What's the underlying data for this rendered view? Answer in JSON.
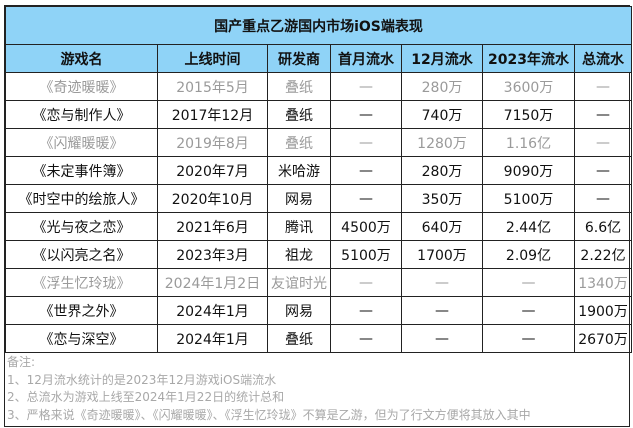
{
  "title": "国产重点乙游国内市场iOS端表现",
  "headers": [
    "游戏名",
    "上线时间",
    "研发商",
    "首月流水",
    "12月流水",
    "2023年流水",
    "总流水"
  ],
  "rows": [
    {
      "muted": true,
      "cells": [
        "《奇迹暖暖》",
        "2015年5月",
        "叠纸",
        "—",
        "280万",
        "3600万",
        "—"
      ]
    },
    {
      "muted": false,
      "cells": [
        "《恋与制作人》",
        "2017年12月",
        "叠纸",
        "—",
        "740万",
        "7150万",
        "—"
      ]
    },
    {
      "muted": true,
      "cells": [
        "《闪耀暖暖》",
        "2019年8月",
        "叠纸",
        "—",
        "1280万",
        "1.16亿",
        "—"
      ]
    },
    {
      "muted": false,
      "cells": [
        "《未定事件簿》",
        "2020年7月",
        "米哈游",
        "—",
        "280万",
        "9090万",
        "—"
      ]
    },
    {
      "muted": false,
      "cells": [
        "《时空中的绘旅人》",
        "2020年10月",
        "网易",
        "—",
        "350万",
        "5100万",
        "—"
      ]
    },
    {
      "muted": false,
      "cells": [
        "《光与夜之恋》",
        "2021年6月",
        "腾讯",
        "4500万",
        "640万",
        "2.44亿",
        "6.6亿"
      ]
    },
    {
      "muted": false,
      "cells": [
        "《以闪亮之名》",
        "2023年3月",
        "祖龙",
        "5100万",
        "1700万",
        "2.09亿",
        "2.22亿"
      ]
    },
    {
      "muted": true,
      "cells": [
        "《浮生忆玲珑》",
        "2024年1月2日",
        "友谊时光",
        "—",
        "—",
        "—",
        "1340万"
      ]
    },
    {
      "muted": false,
      "cells": [
        "《世界之外》",
        "2024年1月",
        "网易",
        "—",
        "—",
        "—",
        "1900万"
      ]
    },
    {
      "muted": false,
      "cells": [
        "《恋与深空》",
        "2024年1月",
        "叠纸",
        "—",
        "—",
        "—",
        "2670万"
      ]
    }
  ],
  "notes": [
    "备注:",
    "1、12月流水统计的是2023年12月游戏iOS端流水",
    "2、总流水为游戏上线至2024年1月22日的统计总和",
    "3、严格来说《奇迹暖暖》、《闪耀暖暖》、《浮生忆玲珑》不算是乙游，但为了行文方便将其放入其中"
  ],
  "colors": {
    "header_bg": "#8fd3f7",
    "muted_text": "#9a9a9a"
  }
}
